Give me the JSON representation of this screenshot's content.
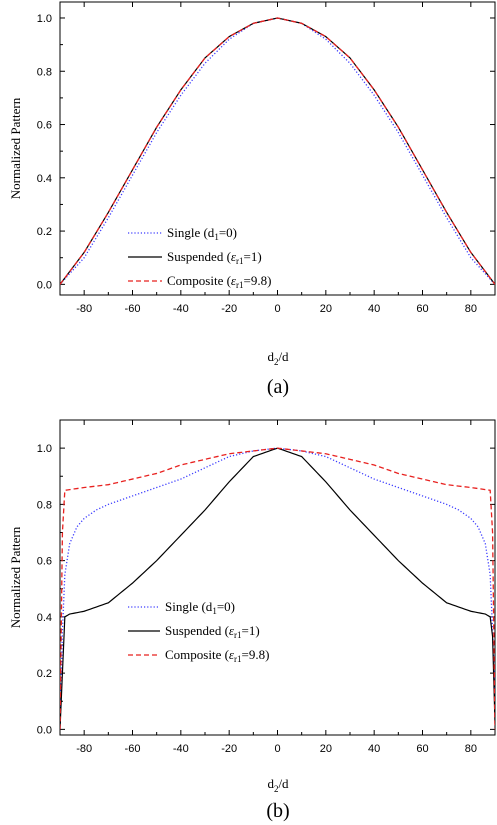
{
  "chart_data": [
    {
      "type": "line",
      "panel_label": "(a)",
      "xlabel": "d",
      "xlabel_sub": "2",
      "xlabel_tail": "/d",
      "ylabel": "Normalized Pattern",
      "xlim": [
        -90,
        90
      ],
      "ylim": [
        -0.04,
        1.06
      ],
      "xticks": [
        -80,
        -60,
        -40,
        -20,
        0,
        20,
        40,
        60,
        80
      ],
      "yticks": [
        0.0,
        0.2,
        0.4,
        0.6,
        0.8,
        1.0
      ],
      "ytick_labels": [
        "0.0",
        "0.2",
        "0.4",
        "0.6",
        "0.8",
        "1.0"
      ],
      "legend_position": "bottom-left",
      "x": [
        -90,
        -80,
        -70,
        -60,
        -50,
        -40,
        -30,
        -20,
        -10,
        0,
        10,
        20,
        30,
        40,
        50,
        60,
        70,
        80,
        90
      ],
      "series": [
        {
          "name": "Single (d1=0)",
          "legend": {
            "pre": "Single (d",
            "sub": "1",
            "post": "=0)"
          },
          "color": "#3b3bff",
          "style": "dotted",
          "values": [
            0.0,
            0.1,
            0.25,
            0.41,
            0.57,
            0.71,
            0.83,
            0.92,
            0.98,
            1.0,
            0.98,
            0.92,
            0.83,
            0.71,
            0.57,
            0.41,
            0.25,
            0.1,
            0.0
          ]
        },
        {
          "name": "Suspended (εr1=1)",
          "legend": {
            "pre": "Suspended (",
            "sym": "ε",
            "sub": "r1",
            "post": "=1)"
          },
          "color": "#000000",
          "style": "solid",
          "values": [
            0.0,
            0.12,
            0.27,
            0.43,
            0.59,
            0.73,
            0.85,
            0.93,
            0.98,
            1.0,
            0.98,
            0.93,
            0.85,
            0.73,
            0.59,
            0.43,
            0.27,
            0.12,
            0.0
          ]
        },
        {
          "name": "Composite (εr1=9.8)",
          "legend": {
            "pre": "Composite (",
            "sym": "ε",
            "sub": "r1",
            "post": "=9.8)"
          },
          "color": "#e8211f",
          "style": "dashed",
          "values": [
            0.0,
            0.12,
            0.27,
            0.43,
            0.59,
            0.73,
            0.85,
            0.93,
            0.98,
            1.0,
            0.98,
            0.93,
            0.85,
            0.73,
            0.59,
            0.43,
            0.27,
            0.12,
            0.0
          ]
        }
      ]
    },
    {
      "type": "line",
      "panel_label": "(b)",
      "xlabel": "d",
      "xlabel_sub": "2",
      "xlabel_tail": "/d",
      "ylabel": "Normalized Pattern",
      "xlim": [
        -90,
        90
      ],
      "ylim": [
        -0.02,
        1.1
      ],
      "xticks": [
        -80,
        -60,
        -40,
        -20,
        0,
        20,
        40,
        60,
        80
      ],
      "yticks": [
        0.0,
        0.2,
        0.4,
        0.6,
        0.8,
        1.0
      ],
      "ytick_labels": [
        "0.0",
        "0.2",
        "0.4",
        "0.6",
        "0.8",
        "1.0"
      ],
      "legend_position": "bottom-left",
      "series": [
        {
          "name": "Single (d1=0)",
          "legend": {
            "pre": "Single (d",
            "sub": "1",
            "post": "=0)"
          },
          "color": "#3b3bff",
          "style": "dotted",
          "x": [
            -90,
            -89,
            -88,
            -86,
            -83,
            -80,
            -75,
            -70,
            -60,
            -50,
            -40,
            -30,
            -20,
            -10,
            0,
            10,
            20,
            30,
            40,
            50,
            60,
            70,
            75,
            80,
            83,
            86,
            88,
            89,
            90
          ],
          "values": [
            0.0,
            0.35,
            0.55,
            0.66,
            0.72,
            0.75,
            0.78,
            0.8,
            0.83,
            0.86,
            0.89,
            0.93,
            0.97,
            0.99,
            1.0,
            0.99,
            0.97,
            0.93,
            0.89,
            0.86,
            0.83,
            0.8,
            0.78,
            0.75,
            0.72,
            0.66,
            0.55,
            0.35,
            0.12
          ]
        },
        {
          "name": "Suspended (εr1=1)",
          "legend": {
            "pre": "Suspended (",
            "sym": "ε",
            "sub": "r1",
            "post": "=1)"
          },
          "color": "#000000",
          "style": "solid",
          "x": [
            -90,
            -88,
            -86,
            -80,
            -70,
            -60,
            -50,
            -40,
            -30,
            -20,
            -10,
            0,
            10,
            20,
            30,
            40,
            50,
            60,
            70,
            80,
            86,
            88,
            89,
            90
          ],
          "values": [
            0.0,
            0.4,
            0.41,
            0.42,
            0.45,
            0.52,
            0.6,
            0.69,
            0.78,
            0.88,
            0.97,
            1.0,
            0.97,
            0.88,
            0.78,
            0.69,
            0.6,
            0.52,
            0.45,
            0.42,
            0.41,
            0.4,
            0.33,
            0.02
          ]
        },
        {
          "name": "Composite (εr1=9.8)",
          "legend": {
            "pre": "Composite (",
            "sym": "ε",
            "sub": "r1",
            "post": "=9.8)"
          },
          "color": "#e8211f",
          "style": "dashed",
          "x": [
            -90,
            -89,
            -88,
            -80,
            -70,
            -60,
            -50,
            -40,
            -30,
            -20,
            -10,
            0,
            10,
            20,
            30,
            40,
            50,
            60,
            70,
            80,
            88,
            89,
            90
          ],
          "values": [
            0.0,
            0.7,
            0.85,
            0.86,
            0.87,
            0.89,
            0.91,
            0.94,
            0.96,
            0.98,
            0.99,
            1.0,
            0.99,
            0.98,
            0.96,
            0.94,
            0.91,
            0.89,
            0.87,
            0.86,
            0.85,
            0.7,
            0.0
          ]
        }
      ]
    }
  ]
}
